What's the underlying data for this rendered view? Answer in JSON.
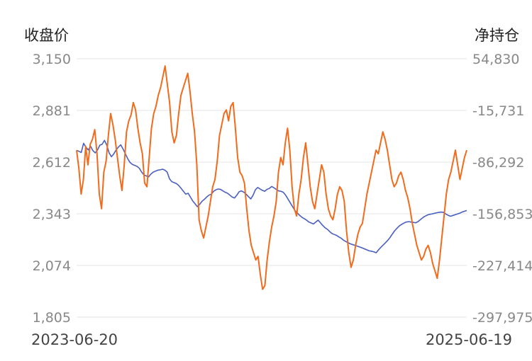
{
  "chart_data": {
    "type": "line",
    "left_axis_title": "收盘价",
    "right_axis_title": "净持仓",
    "x_start_label": "2023-06-20",
    "x_end_label": "2025-06-19",
    "grid": true,
    "left_axis": {
      "ylim": [
        1805,
        3150
      ],
      "ticks": [
        "3,150",
        "2,881",
        "2,612",
        "2,343",
        "2,074",
        "1,805"
      ]
    },
    "right_axis": {
      "ylim": [
        -297975,
        54830
      ],
      "ticks": [
        "54,830",
        "-15,731",
        "-86,292",
        "-156,853",
        "-227,414",
        "-297,975"
      ]
    },
    "series": [
      {
        "key": "close",
        "axis": "left",
        "color": "#4a5fc1",
        "values": [
          2673,
          2668,
          2662,
          2710,
          2690,
          2675,
          2695,
          2672,
          2660,
          2675,
          2700,
          2705,
          2725,
          2700,
          2660,
          2640,
          2655,
          2675,
          2690,
          2702,
          2680,
          2655,
          2630,
          2610,
          2600,
          2595,
          2590,
          2580,
          2560,
          2545,
          2540,
          2535,
          2550,
          2560,
          2565,
          2570,
          2572,
          2575,
          2570,
          2560,
          2525,
          2510,
          2505,
          2500,
          2490,
          2475,
          2460,
          2445,
          2450,
          2430,
          2410,
          2395,
          2380,
          2392,
          2408,
          2418,
          2430,
          2440,
          2445,
          2460,
          2468,
          2472,
          2470,
          2462,
          2455,
          2450,
          2440,
          2430,
          2425,
          2440,
          2458,
          2462,
          2455,
          2445,
          2432,
          2420,
          2440,
          2468,
          2480,
          2472,
          2465,
          2460,
          2470,
          2475,
          2485,
          2478,
          2470,
          2462,
          2460,
          2455,
          2440,
          2420,
          2400,
          2380,
          2360,
          2348,
          2335,
          2325,
          2318,
          2310,
          2300,
          2295,
          2290,
          2300,
          2310,
          2296,
          2282,
          2270,
          2262,
          2250,
          2240,
          2235,
          2230,
          2222,
          2215,
          2205,
          2198,
          2192,
          2186,
          2182,
          2178,
          2174,
          2170,
          2165,
          2160,
          2155,
          2150,
          2148,
          2145,
          2140,
          2155,
          2168,
          2180,
          2192,
          2205,
          2220,
          2238,
          2255,
          2268,
          2280,
          2288,
          2295,
          2300,
          2302,
          2300,
          2298,
          2296,
          2302,
          2312,
          2322,
          2330,
          2336,
          2340,
          2342,
          2345,
          2348,
          2350,
          2352,
          2350,
          2342,
          2335,
          2330,
          2334,
          2338,
          2342,
          2346,
          2352,
          2356,
          2360
        ]
      },
      {
        "key": "net_position",
        "axis": "right",
        "color": "#f26b1d",
        "values": [
          -70000,
          -95000,
          -130000,
          -110000,
          -65000,
          -90000,
          -62000,
          -55000,
          -42000,
          -75000,
          -130000,
          -150000,
          -100000,
          -85000,
          -50000,
          -20000,
          -35000,
          -55000,
          -80000,
          -105000,
          -125000,
          -90000,
          -45000,
          -30000,
          -22000,
          -5000,
          -15000,
          -40000,
          -60000,
          -75000,
          -115000,
          -120000,
          -80000,
          -40000,
          -20000,
          -10000,
          5000,
          15000,
          30000,
          45000,
          20000,
          -5000,
          -45000,
          -60000,
          -50000,
          -20000,
          5000,
          15000,
          25000,
          35000,
          10000,
          -20000,
          -45000,
          -90000,
          -165000,
          -180000,
          -190000,
          -175000,
          -160000,
          -140000,
          -120000,
          -110000,
          -85000,
          -50000,
          -35000,
          -20000,
          -15000,
          -30000,
          -10000,
          -5000,
          -40000,
          -80000,
          -100000,
          -105000,
          -115000,
          -150000,
          -180000,
          -200000,
          -210000,
          -220000,
          -215000,
          -240000,
          -260000,
          -255000,
          -220000,
          -195000,
          -175000,
          -160000,
          -140000,
          -100000,
          -80000,
          -90000,
          -60000,
          -40000,
          -70000,
          -120000,
          -150000,
          -160000,
          -130000,
          -110000,
          -80000,
          -60000,
          -90000,
          -120000,
          -140000,
          -150000,
          -130000,
          -110000,
          -90000,
          -100000,
          -130000,
          -150000,
          -160000,
          -165000,
          -150000,
          -130000,
          -120000,
          -125000,
          -140000,
          -180000,
          -210000,
          -230000,
          -220000,
          -200000,
          -185000,
          -175000,
          -170000,
          -150000,
          -130000,
          -115000,
          -100000,
          -85000,
          -70000,
          -75000,
          -60000,
          -45000,
          -55000,
          -70000,
          -90000,
          -110000,
          -120000,
          -115000,
          -105000,
          -100000,
          -110000,
          -125000,
          -135000,
          -150000,
          -170000,
          -185000,
          -200000,
          -210000,
          -220000,
          -215000,
          -205000,
          -200000,
          -210000,
          -225000,
          -235000,
          -245000,
          -220000,
          -190000,
          -160000,
          -130000,
          -110000,
          -100000,
          -85000,
          -70000,
          -90000,
          -110000,
          -95000,
          -80000,
          -70000
        ]
      }
    ]
  }
}
